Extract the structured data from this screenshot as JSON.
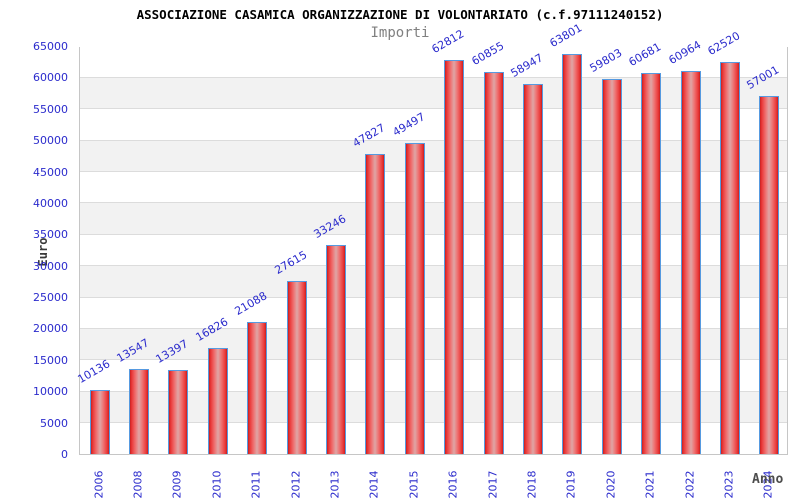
{
  "header": {
    "title": "ASSOCIAZIONE CASAMICA ORGANIZZAZIONE DI VOLONTARIATO (c.f.97111240152)",
    "subtitle": "Importi"
  },
  "chart_data": {
    "type": "bar",
    "title": "ASSOCIAZIONE CASAMICA ORGANIZZAZIONE DI VOLONTARIATO (c.f.97111240152)",
    "subtitle": "Importi",
    "xlabel": "Anno",
    "ylabel": "Euro",
    "categories": [
      "2006",
      "2008",
      "2009",
      "2010",
      "2011",
      "2012",
      "2013",
      "2014",
      "2015",
      "2016",
      "2017",
      "2018",
      "2019",
      "2020",
      "2021",
      "2022",
      "2023",
      "2024"
    ],
    "values": [
      10136,
      13547,
      13397,
      16826,
      21088,
      27615,
      33246,
      47827,
      49497,
      62812,
      60855,
      58947,
      63801,
      59803,
      60681,
      60964,
      62520,
      57001
    ],
    "ylim": [
      0,
      65000
    ],
    "ytick_interval": 5000,
    "grid": true,
    "legend": "none",
    "value_labels": "rotated above bars",
    "colors": {
      "bar_edge_red": "#c81f1f",
      "bar_mid_red": "#dfa6a6",
      "bar_border_blue": "#569ae0",
      "label_blue": "#2b2bcc",
      "title_black": "#000000",
      "subtitle_gray": "#808080",
      "axis_title_gray": "#4d4d4d",
      "stripe_gray": "#f2f2f2",
      "gridline_gray": "#dcdcdc"
    }
  }
}
